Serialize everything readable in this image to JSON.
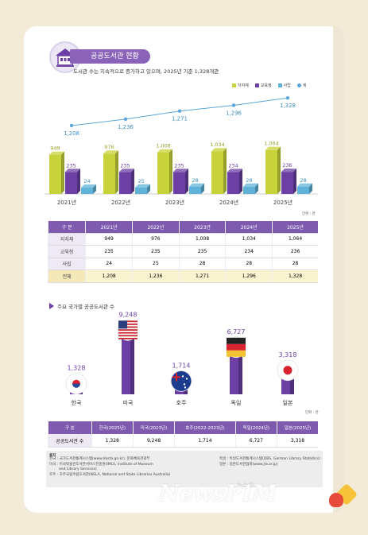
{
  "header": {
    "title": "공공도서관 현황",
    "subtitle": "도서관 수는 지속적으로 증가하고 있으며, 2025년 기준 1,328개관",
    "house_icon": "library-house-icon"
  },
  "colors": {
    "yellow": "#c8d23a",
    "purple": "#6b3fa3",
    "blue": "#5fb3d9",
    "line": "#5ba6d9",
    "accent": "#8a63b8"
  },
  "chart_data": [
    {
      "type": "bar",
      "categories": [
        "2021년",
        "2022년",
        "2023년",
        "2024년",
        "2025년"
      ],
      "series": [
        {
          "name": "지자체",
          "values": [
            949,
            976,
            1008,
            1034,
            1064
          ]
        },
        {
          "name": "교육청",
          "values": [
            235,
            235,
            235,
            234,
            236
          ]
        },
        {
          "name": "사립",
          "values": [
            24,
            25,
            28,
            28,
            28
          ]
        },
        {
          "name": "계",
          "type": "line",
          "values": [
            1208,
            1236,
            1271,
            1296,
            1328
          ]
        }
      ],
      "data_labels": {
        "지자체": [
          "949",
          "976",
          "1,008",
          "1,034",
          "1,064"
        ],
        "교육청": [
          "235",
          "235",
          "235",
          "234",
          "236"
        ],
        "사립": [
          "24",
          "25",
          "28",
          "28",
          "28"
        ],
        "계": [
          "1,208",
          "1,236",
          "1,271",
          "1,296",
          "1,328"
        ]
      },
      "unit": "단위 : 관",
      "legend": "top-right"
    },
    {
      "type": "bar",
      "categories": [
        "한국",
        "미국",
        "호주",
        "독일",
        "일본"
      ],
      "values": [
        1328,
        9248,
        1714,
        6727,
        3318
      ],
      "value_labels": [
        "1,328",
        "9,248",
        "1,714",
        "6,727",
        "3,318"
      ],
      "unit": "단위 : 관",
      "flag_icons": [
        "korea-flag-icon",
        "usa-flag-icon",
        "australia-flag-icon",
        "germany-flag-icon",
        "japan-flag-icon"
      ]
    }
  ],
  "table1": {
    "header": [
      "구 분",
      "2021년",
      "2022년",
      "2023년",
      "2024년",
      "2025년"
    ],
    "rows": [
      [
        "지자체",
        "949",
        "976",
        "1,008",
        "1,034",
        "1,064"
      ],
      [
        "교육청",
        "235",
        "235",
        "235",
        "234",
        "236"
      ],
      [
        "사립",
        "24",
        "25",
        "28",
        "28",
        "28"
      ],
      [
        "전체",
        "1,208",
        "1,236",
        "1,271",
        "1,296",
        "1,328"
      ]
    ]
  },
  "section2": {
    "title": "주요 국가별 공공도서관 수"
  },
  "table2": {
    "header": [
      "구 분",
      "한국(2025년)",
      "미국(2023년)",
      "호주(2022-2023년)",
      "독일(2024년)",
      "일본(2025년)"
    ],
    "row": [
      "공공도서관 수",
      "1,328",
      "9,248",
      "1,714",
      "6,727",
      "3,318"
    ]
  },
  "source": {
    "heading": "출처",
    "left": [
      "한국 : 국가도서관통계시스템(www.libsta.go.kr), 문화체육관광부",
      "미국 : 미국박물관도서관서비스진흥원(IMLS, Institute of Museum",
      "and Library Services)",
      "호주 : 호주국립주립도서관(NSLA, National and State Libraries Australia)"
    ],
    "right": [
      "독일 : 독일도서관통계시스템(DBS, German Library Statistics)",
      "일본 : 일본도서관협회(www.jla.or.jp)"
    ]
  },
  "watermark": {
    "brand": "NewsPIM",
    "small": "뉴스핌",
    "tag": "NEWSPIM"
  }
}
